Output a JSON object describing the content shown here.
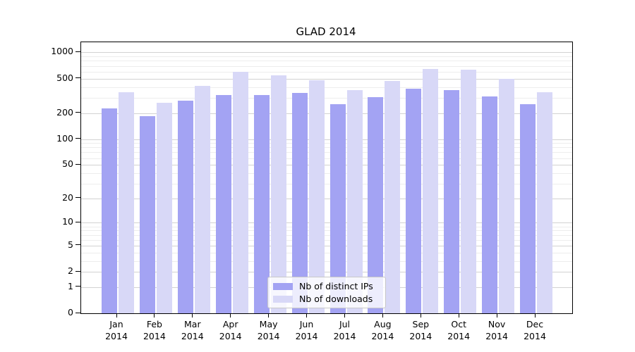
{
  "chart_data": {
    "type": "bar",
    "title": "GLAD 2014",
    "xlabel": "",
    "ylabel": "",
    "yscale": "log(1+x)",
    "ylim": [
      0,
      1300
    ],
    "grid": true,
    "legend_position": "lower center",
    "categories": [
      "Jan",
      "Feb",
      "Mar",
      "Apr",
      "May",
      "Jun",
      "Jul",
      "Aug",
      "Sep",
      "Oct",
      "Nov",
      "Dec"
    ],
    "category_year": "2014",
    "y_ticks": [
      0,
      1,
      2,
      5,
      10,
      20,
      50,
      100,
      200,
      500,
      1000
    ],
    "y_minor_gridlines": [
      3,
      4,
      6,
      7,
      8,
      9,
      30,
      40,
      60,
      70,
      80,
      90,
      300,
      400,
      600,
      700,
      800,
      900
    ],
    "series": [
      {
        "name": "Nb of distinct IPs",
        "color": "#a3a3f3",
        "values": [
          225,
          185,
          280,
          325,
          320,
          340,
          255,
          305,
          380,
          365,
          310,
          255
        ]
      },
      {
        "name": "Nb of downloads",
        "color": "#d8d8f7",
        "values": [
          350,
          265,
          415,
          595,
          550,
          475,
          365,
          470,
          640,
          630,
          495,
          350
        ]
      }
    ],
    "colors": {
      "grid_major": "#d2d2d2",
      "grid_minor": "#ededed",
      "axis": "#000000",
      "background": "#ffffff"
    }
  }
}
